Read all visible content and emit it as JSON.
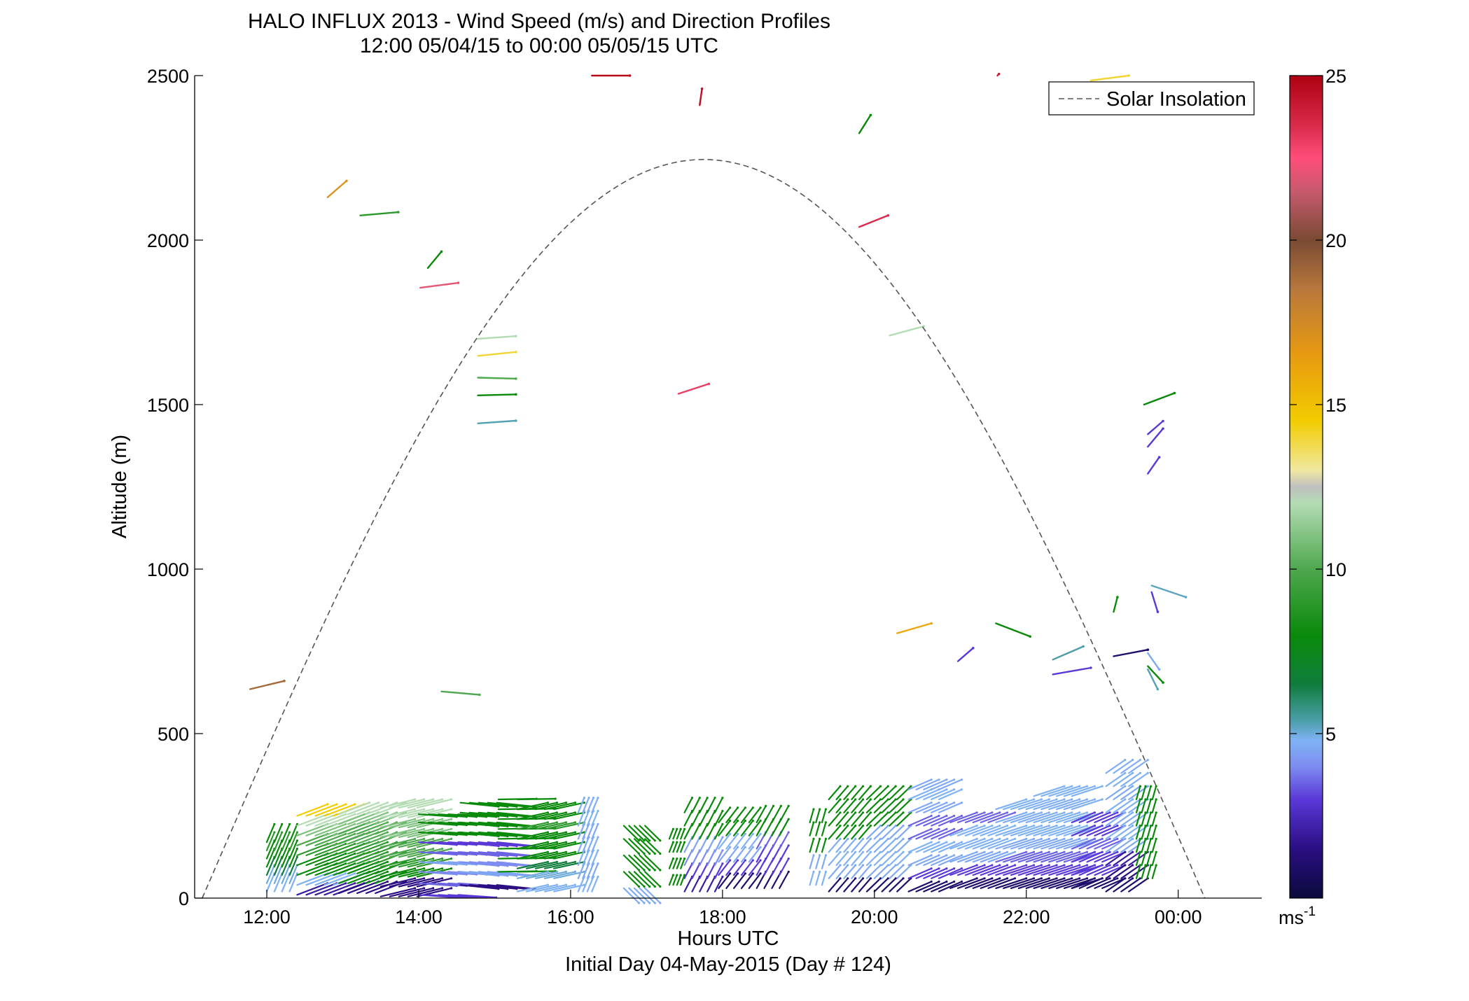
{
  "chart_data": {
    "type": "scatter",
    "title": "HALO INFLUX 2013 - Wind Speed (m/s) and Direction Profiles",
    "subtitle": "12:00 05/04/15 to 00:00 05/05/15  UTC",
    "xlabel": "Hours UTC",
    "ylabel": "Altitude (m)",
    "footer": "Initial Day 04-May-2015 (Day # 124)",
    "xlim": [
      11.05,
      25.1
    ],
    "ylim": [
      0,
      2500
    ],
    "x_ticks": [
      {
        "value": 12,
        "label": "12:00"
      },
      {
        "value": 14,
        "label": "14:00"
      },
      {
        "value": 16,
        "label": "16:00"
      },
      {
        "value": 18,
        "label": "18:00"
      },
      {
        "value": 20,
        "label": "20:00"
      },
      {
        "value": 22,
        "label": "22:00"
      },
      {
        "value": 24,
        "label": "00:00"
      }
    ],
    "y_ticks": [
      0,
      500,
      1000,
      1500,
      2000,
      2500
    ],
    "legend": {
      "label": "Solar Insolation",
      "position": "top-right",
      "style": "dashed",
      "color": "#555555"
    },
    "solar_insolation_curve": {
      "start_hour": 11.15,
      "peak_hour": 17.75,
      "end_hour": 24.35,
      "peak_altitude": 2245
    },
    "colorbar": {
      "min": 0,
      "max": 25,
      "ticks": [
        5,
        10,
        15,
        20,
        25
      ],
      "unit_base": "ms",
      "unit_exp": "-1",
      "stops": [
        {
          "v": 0,
          "color": "#0a0a3c"
        },
        {
          "v": 1.5,
          "color": "#2a0e82"
        },
        {
          "v": 3,
          "color": "#5a38d8"
        },
        {
          "v": 4,
          "color": "#7d8cf0"
        },
        {
          "v": 4.8,
          "color": "#7fb2f4"
        },
        {
          "v": 5.4,
          "color": "#4a9ea8"
        },
        {
          "v": 6.5,
          "color": "#0f7d3c"
        },
        {
          "v": 8,
          "color": "#0a8a0a"
        },
        {
          "v": 10,
          "color": "#4ea84e"
        },
        {
          "v": 12,
          "color": "#b4dcb4"
        },
        {
          "v": 12.5,
          "color": "#bfbfbf"
        },
        {
          "v": 13,
          "color": "#f0e8a0"
        },
        {
          "v": 14.5,
          "color": "#f2cc00"
        },
        {
          "v": 16.5,
          "color": "#e89a10"
        },
        {
          "v": 18.5,
          "color": "#b8783c"
        },
        {
          "v": 20,
          "color": "#7a4a34"
        },
        {
          "v": 21.5,
          "color": "#c85a6e"
        },
        {
          "v": 22.5,
          "color": "#ff4d7a"
        },
        {
          "v": 23.5,
          "color": "#d92a4a"
        },
        {
          "v": 25,
          "color": "#b00012"
        }
      ]
    },
    "scatter_barbs": [
      {
        "x": 11.78,
        "y": 635,
        "u": 0.45,
        "v": 25,
        "s": 19
      },
      {
        "x": 12.8,
        "y": 2130,
        "u": 0.25,
        "v": 50,
        "s": 17
      },
      {
        "x": 13.23,
        "y": 2075,
        "u": 0.5,
        "v": 10,
        "s": 9
      },
      {
        "x": 14.12,
        "y": 1915,
        "u": 0.18,
        "v": 50,
        "s": 8
      },
      {
        "x": 14.02,
        "y": 1855,
        "u": 0.5,
        "v": 15,
        "s": 22
      },
      {
        "x": 14.3,
        "y": 628,
        "u": 0.5,
        "v": -10,
        "s": 10
      },
      {
        "x": 14.78,
        "y": 1700,
        "u": 0.5,
        "v": 8,
        "s": 12
      },
      {
        "x": 14.78,
        "y": 1648,
        "u": 0.5,
        "v": 12,
        "s": 14
      },
      {
        "x": 14.78,
        "y": 1582,
        "u": 0.5,
        "v": -3,
        "s": 10
      },
      {
        "x": 14.78,
        "y": 1528,
        "u": 0.5,
        "v": 3,
        "s": 8
      },
      {
        "x": 14.78,
        "y": 1443,
        "u": 0.5,
        "v": 8,
        "s": 5.3
      },
      {
        "x": 16.28,
        "y": 2500,
        "u": 0.5,
        "v": 0,
        "s": 24.8
      },
      {
        "x": 17.42,
        "y": 1533,
        "u": 0.4,
        "v": 30,
        "s": 23
      },
      {
        "x": 17.7,
        "y": 2410,
        "u": 0.03,
        "v": 50,
        "s": 24.5
      },
      {
        "x": 19.8,
        "y": 2040,
        "u": 0.38,
        "v": 35,
        "s": 23.5
      },
      {
        "x": 19.8,
        "y": 2325,
        "u": 0.15,
        "v": 55,
        "s": 8
      },
      {
        "x": 20.2,
        "y": 1710,
        "u": 0.45,
        "v": 28,
        "s": 12
      },
      {
        "x": 20.3,
        "y": 805,
        "u": 0.45,
        "v": 30,
        "s": 16
      },
      {
        "x": 22.85,
        "y": 2485,
        "u": 0.5,
        "v": 15,
        "s": 14
      },
      {
        "x": 21.62,
        "y": 2500,
        "u": 0.02,
        "v": 5,
        "s": 24
      },
      {
        "x": 23.55,
        "y": 1500,
        "u": 0.4,
        "v": 35,
        "s": 8
      },
      {
        "x": 23.6,
        "y": 1372,
        "u": 0.2,
        "v": 55,
        "s": 3
      },
      {
        "x": 23.6,
        "y": 1290,
        "u": 0.15,
        "v": 50,
        "s": 3
      },
      {
        "x": 23.6,
        "y": 1410,
        "u": 0.2,
        "v": 40,
        "s": 3
      },
      {
        "x": 23.65,
        "y": 950,
        "u": 0.45,
        "v": -35,
        "s": 5.2
      },
      {
        "x": 23.65,
        "y": 930,
        "u": 0.08,
        "v": -60,
        "s": 3
      },
      {
        "x": 23.15,
        "y": 870,
        "u": 0.05,
        "v": 45,
        "s": 8
      },
      {
        "x": 23.15,
        "y": 735,
        "u": 0.45,
        "v": 20,
        "s": 1
      },
      {
        "x": 23.6,
        "y": 745,
        "u": 0.15,
        "v": -50,
        "s": 4.6
      },
      {
        "x": 23.6,
        "y": 695,
        "u": 0.13,
        "v": -60,
        "s": 5.3
      },
      {
        "x": 23.6,
        "y": 705,
        "u": 0.2,
        "v": -50,
        "s": 8
      },
      {
        "x": 21.6,
        "y": 835,
        "u": 0.45,
        "v": -40,
        "s": 8
      },
      {
        "x": 22.35,
        "y": 725,
        "u": 0.4,
        "v": 40,
        "s": 5.4
      },
      {
        "x": 22.35,
        "y": 680,
        "u": 0.5,
        "v": 20,
        "s": 3
      },
      {
        "x": 21.1,
        "y": 720,
        "u": 0.2,
        "v": 40,
        "s": 3
      }
    ]
  }
}
